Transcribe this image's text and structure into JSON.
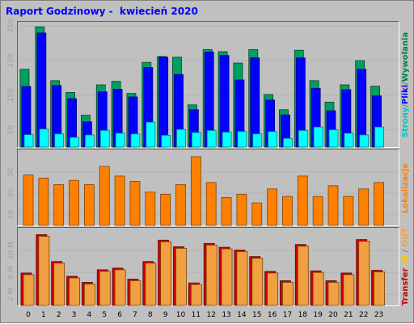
{
  "report": {
    "title": "Raport Godzinowy -  kwiecień 2020"
  },
  "chart_data": [
    {
      "type": "bar",
      "categories": [
        "0",
        "1",
        "2",
        "3",
        "4",
        "5",
        "6",
        "7",
        "8",
        "9",
        "10",
        "11",
        "12",
        "13",
        "14",
        "15",
        "16",
        "17",
        "18",
        "19",
        "20",
        "21",
        "22",
        "23"
      ],
      "ylim": [
        0,
        360
      ],
      "yticks": [
        "50",
        "150",
        "250",
        "350"
      ],
      "legend": [
        "Strony",
        "Pliki",
        "Wywołania"
      ],
      "series": [
        {
          "name": "Wywołania",
          "color": "#00a0a0",
          "values": [
            225,
            348,
            192,
            158,
            92,
            180,
            190,
            155,
            245,
            262,
            260,
            122,
            282,
            276,
            243,
            282,
            152,
            108,
            280,
            192,
            130,
            180,
            250,
            176
          ]
        },
        {
          "name": "Pliki",
          "color": "#0000ff",
          "values": [
            175,
            330,
            178,
            140,
            73,
            160,
            167,
            145,
            230,
            260,
            210,
            108,
            275,
            265,
            194,
            258,
            136,
            93,
            258,
            170,
            105,
            166,
            225,
            148
          ]
        },
        {
          "name": "Strony",
          "color": "#00ffff",
          "values": [
            36,
            52,
            38,
            28,
            35,
            48,
            40,
            38,
            72,
            34,
            51,
            42,
            48,
            43,
            45,
            38,
            45,
            25,
            48,
            58,
            50,
            40,
            35,
            58
          ]
        }
      ]
    },
    {
      "type": "bar",
      "categories": [
        "0",
        "1",
        "2",
        "3",
        "4",
        "5",
        "6",
        "7",
        "8",
        "9",
        "10",
        "11",
        "12",
        "13",
        "14",
        "15",
        "16",
        "17",
        "18",
        "19",
        "20",
        "21",
        "22",
        "23"
      ],
      "ylim": [
        0,
        70
      ],
      "yticks": [
        "10",
        "30",
        "50"
      ],
      "legend": [
        "Lokalizacje"
      ],
      "series": [
        {
          "name": "Lokalizacje",
          "color": "#ff8000",
          "values": [
            47,
            44,
            38,
            42,
            38,
            55,
            46,
            41,
            31,
            29,
            38,
            64,
            40,
            26,
            29,
            21,
            34,
            27,
            46,
            27,
            37,
            27,
            34,
            40
          ]
        }
      ]
    },
    {
      "type": "bar",
      "categories": [
        "0",
        "1",
        "2",
        "3",
        "4",
        "5",
        "6",
        "7",
        "8",
        "9",
        "10",
        "11",
        "12",
        "13",
        "14",
        "15",
        "16",
        "17",
        "18",
        "19",
        "20",
        "21",
        "22",
        "23"
      ],
      "ylim": [
        0,
        14
      ],
      "yticks": [
        "2 M",
        "6 M",
        "10 M"
      ],
      "legend": [
        "Transfer",
        "IN",
        "OUT"
      ],
      "series": [
        {
          "name": "Transfer",
          "color": "#f0a040",
          "values": [
            5.9,
            12.9,
            8.0,
            5.3,
            4.2,
            6.5,
            6.8,
            4.8,
            8.0,
            11.9,
            10.7,
            4.1,
            11.3,
            10.6,
            10.1,
            8.9,
            6.2,
            4.5,
            11.1,
            6.3,
            4.5,
            5.9,
            12.0,
            6.4
          ]
        }
      ]
    }
  ],
  "x_axis_labels": [
    "0",
    "1",
    "2",
    "3",
    "4",
    "5",
    "6",
    "7",
    "8",
    "9",
    "10",
    "11",
    "12",
    "13",
    "14",
    "15",
    "16",
    "17",
    "18",
    "19",
    "20",
    "21",
    "22",
    "23"
  ],
  "side_labels": {
    "top": [
      {
        "text": "Strony",
        "color": "#00c0c0"
      },
      {
        "text": "/",
        "color": "#808080"
      },
      {
        "text": "Pliki",
        "color": "#0000ff"
      },
      {
        "text": "/",
        "color": "#808080"
      },
      {
        "text": "Wywołania",
        "color": "#008040"
      }
    ],
    "mid": [
      {
        "text": "Lokalizacje",
        "color": "#ff8000"
      }
    ],
    "bot": [
      {
        "text": "Transfer",
        "color": "#c00000"
      },
      {
        "text": " ",
        "color": "#808080"
      },
      {
        "text": "IN",
        "color": "#f0d000"
      },
      {
        "text": " / ",
        "color": "#808080"
      },
      {
        "text": "OUT",
        "color": "#f0a040"
      }
    ]
  },
  "colors": {
    "background": "#c0c0c0",
    "hits": "#00a060",
    "files": "#0000ff",
    "pages": "#00ffff",
    "sites": "#ff8000",
    "kbytes": "#f0a040",
    "kbytes_in": "#d00000"
  }
}
